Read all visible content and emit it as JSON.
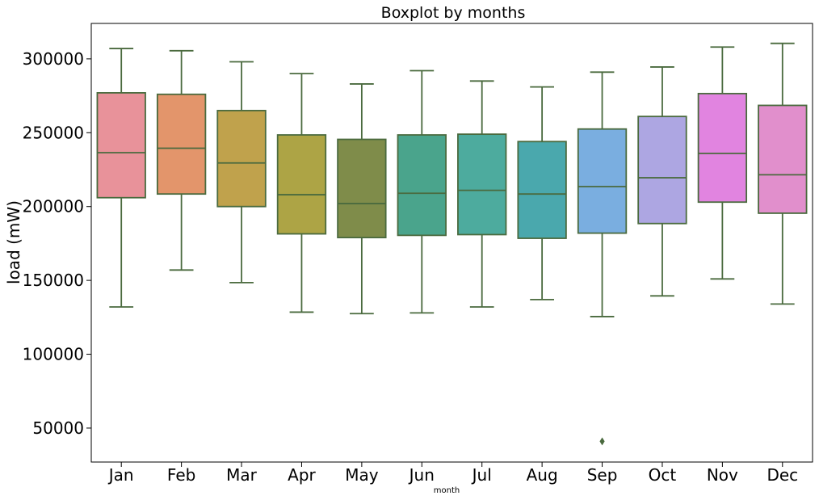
{
  "chart_data": {
    "type": "boxplot",
    "title": "Boxplot by months",
    "xlabel": "month",
    "ylabel": "load (mW)",
    "ylim": [
      27000,
      324000
    ],
    "yticks": [
      50000,
      100000,
      150000,
      200000,
      250000,
      300000
    ],
    "ytick_labels": [
      "50000",
      "100000",
      "150000",
      "200000",
      "250000",
      "300000"
    ],
    "grid": false,
    "categories": [
      "Jan",
      "Feb",
      "Mar",
      "Apr",
      "May",
      "Jun",
      "Jul",
      "Aug",
      "Sep",
      "Oct",
      "Nov",
      "Dec"
    ],
    "boxes": [
      {
        "whisker_low": 132000,
        "q1": 206000,
        "median": 236500,
        "q3": 277000,
        "whisker_high": 307000,
        "outliers": [],
        "color": "#e8929a"
      },
      {
        "whisker_low": 157000,
        "q1": 208500,
        "median": 239500,
        "q3": 276000,
        "whisker_high": 305500,
        "outliers": [],
        "color": "#e3956b"
      },
      {
        "whisker_low": 148500,
        "q1": 200000,
        "median": 229500,
        "q3": 265000,
        "whisker_high": 298000,
        "outliers": [],
        "color": "#c0a24c"
      },
      {
        "whisker_low": 128500,
        "q1": 181500,
        "median": 208000,
        "q3": 248500,
        "whisker_high": 290000,
        "outliers": [],
        "color": "#ada445"
      },
      {
        "whisker_low": 127500,
        "q1": 179000,
        "median": 202000,
        "q3": 245500,
        "whisker_high": 283000,
        "outliers": [],
        "color": "#7f8c4a"
      },
      {
        "whisker_low": 128000,
        "q1": 180500,
        "median": 209000,
        "q3": 248500,
        "whisker_high": 292000,
        "outliers": [],
        "color": "#4aa48c"
      },
      {
        "whisker_low": 132000,
        "q1": 181000,
        "median": 211000,
        "q3": 249000,
        "whisker_high": 285000,
        "outliers": [],
        "color": "#4dab9e"
      },
      {
        "whisker_low": 137000,
        "q1": 178500,
        "median": 208500,
        "q3": 244000,
        "whisker_high": 281000,
        "outliers": [],
        "color": "#4aa8ad"
      },
      {
        "whisker_low": 125500,
        "q1": 182000,
        "median": 213500,
        "q3": 252500,
        "whisker_high": 291000,
        "outliers": [
          41000
        ],
        "color": "#7aaee0"
      },
      {
        "whisker_low": 139500,
        "q1": 188500,
        "median": 219500,
        "q3": 261000,
        "whisker_high": 294500,
        "outliers": [],
        "color": "#ada6e2"
      },
      {
        "whisker_low": 151000,
        "q1": 203000,
        "median": 236000,
        "q3": 276500,
        "whisker_high": 308000,
        "outliers": [],
        "color": "#e184e0"
      },
      {
        "whisker_low": 134000,
        "q1": 195500,
        "median": 221500,
        "q3": 268500,
        "whisker_high": 310500,
        "outliers": [],
        "color": "#e18fcc"
      }
    ],
    "line_color": "#4a6a3e"
  }
}
